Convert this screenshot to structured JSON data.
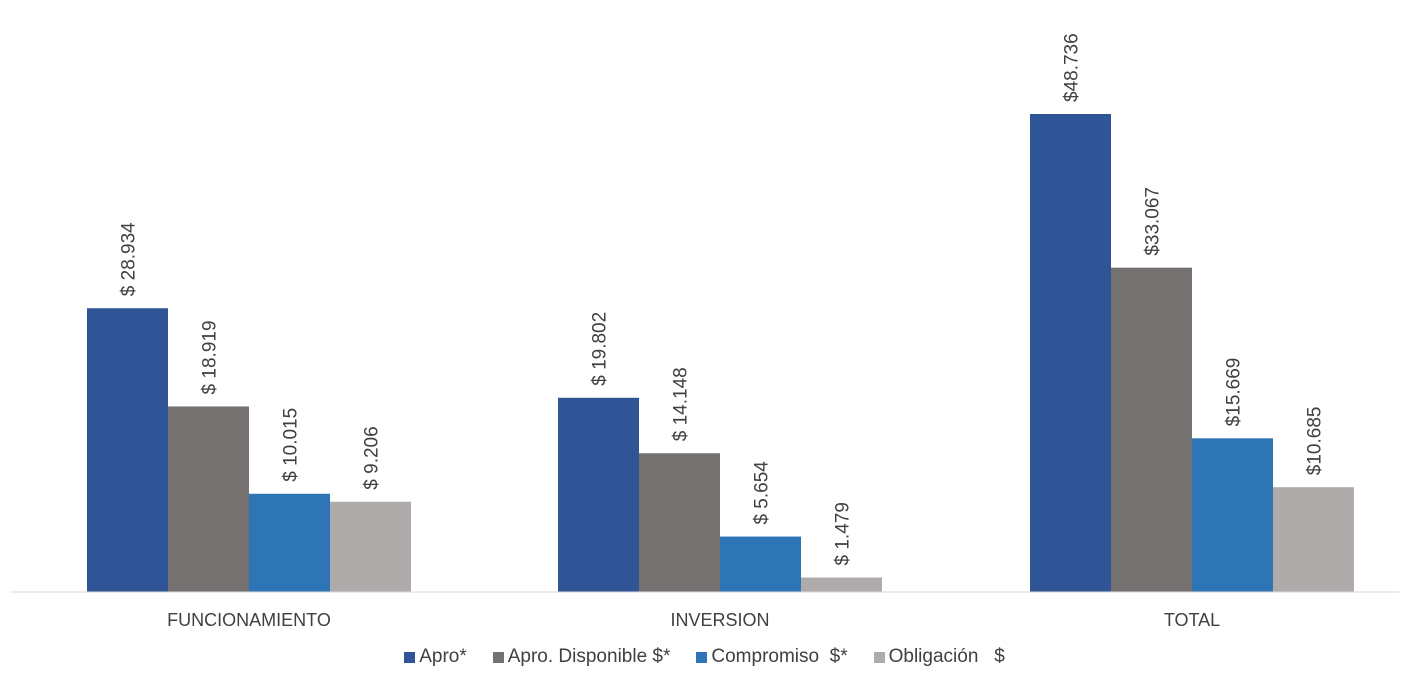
{
  "chart_data": {
    "type": "bar",
    "title": "",
    "xlabel": "",
    "ylabel": "",
    "ylim": [
      0,
      52
    ],
    "grid": false,
    "legend_position": "bottom",
    "categories": [
      "FUNCIONAMIENTO",
      "INVERSION",
      "TOTAL"
    ],
    "series": [
      {
        "name": "Apro*",
        "color": "#2f5597",
        "values": [
          28.934,
          19.802,
          48.736
        ],
        "labels": [
          "$ 28.934",
          "$ 19.802",
          "$48.736"
        ]
      },
      {
        "name": "Apro. Disponible $*",
        "color": "#757171",
        "values": [
          18.919,
          14.148,
          33.067
        ],
        "labels": [
          "$ 18.919",
          "$ 14.148",
          "$33.067"
        ]
      },
      {
        "name": "Compromiso  $*",
        "color": "#2e75b6",
        "values": [
          10.015,
          5.654,
          15.669
        ],
        "labels": [
          "$ 10.015",
          "$ 5.654",
          "$15.669"
        ]
      },
      {
        "name": "Obligación   $",
        "color": "#afabab",
        "values": [
          9.206,
          1.479,
          10.685
        ],
        "labels": [
          "$ 9.206",
          "$ 1.479",
          "$10.685"
        ]
      }
    ],
    "axis_color": "#d9d9d9"
  }
}
